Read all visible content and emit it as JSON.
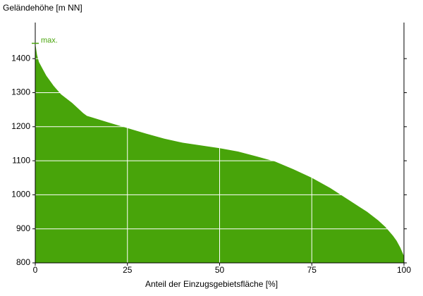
{
  "chart_data": {
    "type": "area",
    "y_label": "Geländehöhe [m NN]",
    "x_label": "Anteil der Einzugsgebietsfläche [%]",
    "x": [
      0,
      0.5,
      1,
      2,
      3,
      5,
      7,
      10,
      13,
      14,
      20,
      25,
      30,
      35,
      40,
      45,
      50,
      55,
      60,
      65,
      70,
      75,
      80,
      85,
      90,
      93,
      95,
      97,
      98,
      99,
      100
    ],
    "values": [
      1445,
      1410,
      1390,
      1370,
      1350,
      1320,
      1295,
      1270,
      1240,
      1232,
      1212,
      1196,
      1180,
      1165,
      1153,
      1145,
      1137,
      1127,
      1113,
      1098,
      1075,
      1050,
      1020,
      985,
      950,
      925,
      905,
      880,
      865,
      845,
      820
    ],
    "color": "#48a40a",
    "annotation": {
      "text": "max.",
      "value": 1445
    },
    "xlim": [
      0,
      100
    ],
    "xticks": [
      0,
      25,
      50,
      75,
      100
    ],
    "ylim": [
      800,
      1506
    ],
    "yticks": [
      800,
      900,
      1000,
      1100,
      1200,
      1300,
      1400
    ],
    "grid": true
  }
}
